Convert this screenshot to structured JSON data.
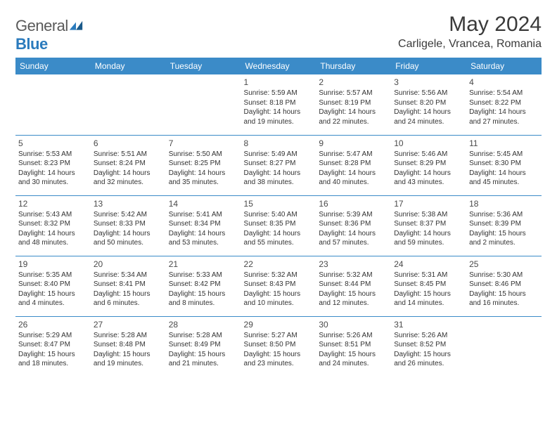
{
  "brand": {
    "name_left": "General",
    "name_right": "Blue"
  },
  "title": {
    "month_year": "May 2024",
    "location": "Carligele, Vrancea, Romania"
  },
  "colors": {
    "header_bg": "#3b8bc8",
    "header_text": "#ffffff",
    "rule": "#3b8bc8",
    "text": "#333333",
    "brand_gray": "#5a5a5a",
    "brand_blue": "#2b7bbd"
  },
  "day_headers": [
    "Sunday",
    "Monday",
    "Tuesday",
    "Wednesday",
    "Thursday",
    "Friday",
    "Saturday"
  ],
  "weeks": [
    [
      null,
      null,
      null,
      {
        "d": "1",
        "sr": "5:59 AM",
        "ss": "8:18 PM",
        "dl": "14 hours and 19 minutes."
      },
      {
        "d": "2",
        "sr": "5:57 AM",
        "ss": "8:19 PM",
        "dl": "14 hours and 22 minutes."
      },
      {
        "d": "3",
        "sr": "5:56 AM",
        "ss": "8:20 PM",
        "dl": "14 hours and 24 minutes."
      },
      {
        "d": "4",
        "sr": "5:54 AM",
        "ss": "8:22 PM",
        "dl": "14 hours and 27 minutes."
      }
    ],
    [
      {
        "d": "5",
        "sr": "5:53 AM",
        "ss": "8:23 PM",
        "dl": "14 hours and 30 minutes."
      },
      {
        "d": "6",
        "sr": "5:51 AM",
        "ss": "8:24 PM",
        "dl": "14 hours and 32 minutes."
      },
      {
        "d": "7",
        "sr": "5:50 AM",
        "ss": "8:25 PM",
        "dl": "14 hours and 35 minutes."
      },
      {
        "d": "8",
        "sr": "5:49 AM",
        "ss": "8:27 PM",
        "dl": "14 hours and 38 minutes."
      },
      {
        "d": "9",
        "sr": "5:47 AM",
        "ss": "8:28 PM",
        "dl": "14 hours and 40 minutes."
      },
      {
        "d": "10",
        "sr": "5:46 AM",
        "ss": "8:29 PM",
        "dl": "14 hours and 43 minutes."
      },
      {
        "d": "11",
        "sr": "5:45 AM",
        "ss": "8:30 PM",
        "dl": "14 hours and 45 minutes."
      }
    ],
    [
      {
        "d": "12",
        "sr": "5:43 AM",
        "ss": "8:32 PM",
        "dl": "14 hours and 48 minutes."
      },
      {
        "d": "13",
        "sr": "5:42 AM",
        "ss": "8:33 PM",
        "dl": "14 hours and 50 minutes."
      },
      {
        "d": "14",
        "sr": "5:41 AM",
        "ss": "8:34 PM",
        "dl": "14 hours and 53 minutes."
      },
      {
        "d": "15",
        "sr": "5:40 AM",
        "ss": "8:35 PM",
        "dl": "14 hours and 55 minutes."
      },
      {
        "d": "16",
        "sr": "5:39 AM",
        "ss": "8:36 PM",
        "dl": "14 hours and 57 minutes."
      },
      {
        "d": "17",
        "sr": "5:38 AM",
        "ss": "8:37 PM",
        "dl": "14 hours and 59 minutes."
      },
      {
        "d": "18",
        "sr": "5:36 AM",
        "ss": "8:39 PM",
        "dl": "15 hours and 2 minutes."
      }
    ],
    [
      {
        "d": "19",
        "sr": "5:35 AM",
        "ss": "8:40 PM",
        "dl": "15 hours and 4 minutes."
      },
      {
        "d": "20",
        "sr": "5:34 AM",
        "ss": "8:41 PM",
        "dl": "15 hours and 6 minutes."
      },
      {
        "d": "21",
        "sr": "5:33 AM",
        "ss": "8:42 PM",
        "dl": "15 hours and 8 minutes."
      },
      {
        "d": "22",
        "sr": "5:32 AM",
        "ss": "8:43 PM",
        "dl": "15 hours and 10 minutes."
      },
      {
        "d": "23",
        "sr": "5:32 AM",
        "ss": "8:44 PM",
        "dl": "15 hours and 12 minutes."
      },
      {
        "d": "24",
        "sr": "5:31 AM",
        "ss": "8:45 PM",
        "dl": "15 hours and 14 minutes."
      },
      {
        "d": "25",
        "sr": "5:30 AM",
        "ss": "8:46 PM",
        "dl": "15 hours and 16 minutes."
      }
    ],
    [
      {
        "d": "26",
        "sr": "5:29 AM",
        "ss": "8:47 PM",
        "dl": "15 hours and 18 minutes."
      },
      {
        "d": "27",
        "sr": "5:28 AM",
        "ss": "8:48 PM",
        "dl": "15 hours and 19 minutes."
      },
      {
        "d": "28",
        "sr": "5:28 AM",
        "ss": "8:49 PM",
        "dl": "15 hours and 21 minutes."
      },
      {
        "d": "29",
        "sr": "5:27 AM",
        "ss": "8:50 PM",
        "dl": "15 hours and 23 minutes."
      },
      {
        "d": "30",
        "sr": "5:26 AM",
        "ss": "8:51 PM",
        "dl": "15 hours and 24 minutes."
      },
      {
        "d": "31",
        "sr": "5:26 AM",
        "ss": "8:52 PM",
        "dl": "15 hours and 26 minutes."
      },
      null
    ]
  ],
  "labels": {
    "sunrise": "Sunrise:",
    "sunset": "Sunset:",
    "daylight": "Daylight:"
  }
}
